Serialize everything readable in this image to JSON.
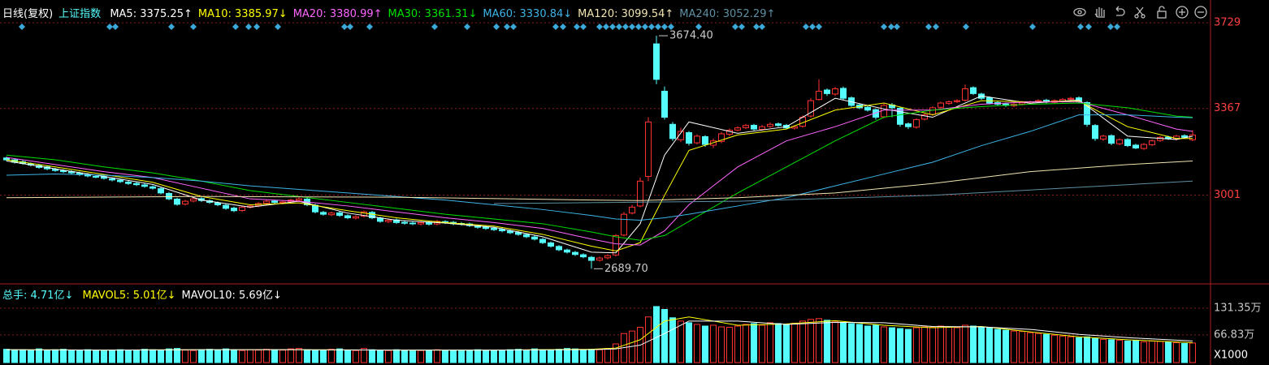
{
  "chart_data": [
    {
      "type": "candlestick",
      "period": "日线(复权)",
      "title": "上证指数",
      "open": [
        3158,
        3150,
        3142,
        3133,
        3126,
        3120,
        3110,
        3104,
        3100,
        3094,
        3088,
        3080,
        3079,
        3070,
        3064,
        3056,
        3050,
        3044,
        3036,
        3028,
        3008,
        2984,
        2963,
        2976,
        2986,
        2977,
        2968,
        2958,
        2946,
        2936,
        2950,
        2956,
        2966,
        2976,
        2968,
        2973,
        2979,
        2984,
        2958,
        2928,
        2918,
        2926,
        2914,
        2904,
        2912,
        2928,
        2904,
        2889,
        2896,
        2886,
        2883,
        2879,
        2886,
        2879,
        2889,
        2886,
        2881,
        2879,
        2871,
        2866,
        2861,
        2856,
        2849,
        2843,
        2834,
        2824,
        2814,
        2799,
        2784,
        2769,
        2759,
        2749,
        2738,
        2726,
        2736,
        2748,
        2832,
        2925,
        2955,
        3080,
        3640,
        3440,
        3300,
        3235,
        3265,
        3222,
        3248,
        3212,
        3228,
        3258,
        3276,
        3286,
        3296,
        3279,
        3291,
        3302,
        3296,
        3284,
        3292,
        3335,
        3405,
        3445,
        3428,
        3452,
        3412,
        3382,
        3372,
        3362,
        3332,
        3382,
        3368,
        3302,
        3288,
        3322,
        3342,
        3372,
        3388,
        3396,
        3402,
        3455,
        3428,
        3412,
        3392,
        3386,
        3379,
        3386,
        3390,
        3396,
        3402,
        3393,
        3398,
        3406,
        3412,
        3392,
        3295,
        3238,
        3252,
        3218,
        3236,
        3212,
        3198,
        3214,
        3232,
        3246,
        3238,
        3252,
        3235
      ],
      "high": [
        3164,
        3156,
        3148,
        3139,
        3132,
        3126,
        3116,
        3110,
        3106,
        3100,
        3094,
        3086,
        3085,
        3076,
        3070,
        3062,
        3056,
        3050,
        3042,
        3034,
        3014,
        2990,
        2981,
        2992,
        2992,
        2983,
        2974,
        2964,
        2952,
        2956,
        2961,
        2971,
        2981,
        2982,
        2978,
        2986,
        2991,
        2990,
        2964,
        2934,
        2931,
        2932,
        2920,
        2916,
        2936,
        2934,
        2910,
        2901,
        2902,
        2892,
        2889,
        2891,
        2892,
        2896,
        2895,
        2892,
        2887,
        2885,
        2877,
        2872,
        2867,
        2862,
        2855,
        2849,
        2840,
        2830,
        2820,
        2805,
        2790,
        2775,
        2765,
        2755,
        2744,
        2741,
        2751,
        2836,
        2930,
        2960,
        3075,
        3330,
        3674.4,
        3460,
        3310,
        3285,
        3272,
        3258,
        3254,
        3240,
        3268,
        3282,
        3292,
        3302,
        3302,
        3297,
        3308,
        3308,
        3302,
        3296,
        3338,
        3410,
        3490,
        3452,
        3458,
        3460,
        3418,
        3388,
        3378,
        3368,
        3388,
        3390,
        3374,
        3308,
        3326,
        3346,
        3376,
        3396,
        3401,
        3406,
        3468,
        3461,
        3434,
        3418,
        3398,
        3392,
        3391,
        3398,
        3401,
        3406,
        3408,
        3406,
        3411,
        3416,
        3418,
        3398,
        3301,
        3256,
        3258,
        3241,
        3242,
        3218,
        3221,
        3236,
        3251,
        3252,
        3256,
        3258,
        3275
      ],
      "low": [
        3144,
        3134,
        3129,
        3122,
        3112,
        3106,
        3099,
        3094,
        3089,
        3082,
        3076,
        3072,
        3066,
        3059,
        3052,
        3044,
        3039,
        3032,
        3024,
        3004,
        2979,
        2956,
        2957,
        2970,
        2972,
        2964,
        2954,
        2939,
        2929,
        2930,
        2944,
        2950,
        2960,
        2964,
        2962,
        2967,
        2973,
        2954,
        2924,
        2914,
        2912,
        2909,
        2899,
        2898,
        2906,
        2899,
        2884,
        2883,
        2879,
        2876,
        2874,
        2873,
        2872,
        2873,
        2879,
        2874,
        2872,
        2866,
        2859,
        2854,
        2849,
        2844,
        2836,
        2829,
        2819,
        2809,
        2794,
        2779,
        2764,
        2754,
        2744,
        2734,
        2689.7,
        2720,
        2730,
        2742,
        2826,
        2919,
        2949,
        3060,
        3470,
        3320,
        3230,
        3225,
        3210,
        3215,
        3205,
        3200,
        3220,
        3250,
        3270,
        3280,
        3274,
        3273,
        3285,
        3289,
        3279,
        3278,
        3286,
        3328,
        3400,
        3420,
        3420,
        3404,
        3374,
        3364,
        3354,
        3320,
        3326,
        3330,
        3290,
        3280,
        3282,
        3316,
        3336,
        3366,
        3382,
        3390,
        3396,
        3424,
        3404,
        3384,
        3379,
        3374,
        3373,
        3380,
        3384,
        3390,
        3389,
        3387,
        3392,
        3400,
        3389,
        3290,
        3230,
        3230,
        3212,
        3212,
        3204,
        3195,
        3192,
        3208,
        3226,
        3234,
        3232,
        3239,
        3229
      ],
      "close": [
        3150,
        3140,
        3135,
        3128,
        3118,
        3112,
        3105,
        3100,
        3095,
        3088,
        3082,
        3078,
        3072,
        3065,
        3058,
        3050,
        3045,
        3038,
        3030,
        3010,
        2985,
        2962,
        2975,
        2985,
        2978,
        2970,
        2960,
        2945,
        2935,
        2950,
        2955,
        2965,
        2975,
        2970,
        2972,
        2980,
        2985,
        2960,
        2930,
        2920,
        2925,
        2915,
        2905,
        2910,
        2930,
        2905,
        2890,
        2895,
        2885,
        2882,
        2880,
        2885,
        2878,
        2890,
        2885,
        2880,
        2878,
        2872,
        2865,
        2860,
        2855,
        2850,
        2842,
        2835,
        2825,
        2815,
        2800,
        2785,
        2770,
        2760,
        2750,
        2740,
        2725,
        2735,
        2745,
        2830,
        2920,
        2950,
        3060,
        3310,
        3490,
        3330,
        3240,
        3270,
        3220,
        3250,
        3215,
        3230,
        3260,
        3275,
        3285,
        3295,
        3280,
        3290,
        3300,
        3295,
        3285,
        3290,
        3330,
        3400,
        3440,
        3430,
        3450,
        3410,
        3380,
        3370,
        3360,
        3330,
        3380,
        3370,
        3300,
        3290,
        3320,
        3340,
        3370,
        3390,
        3395,
        3400,
        3450,
        3430,
        3410,
        3390,
        3385,
        3380,
        3385,
        3392,
        3395,
        3400,
        3395,
        3400,
        3405,
        3410,
        3395,
        3300,
        3240,
        3250,
        3220,
        3235,
        3210,
        3200,
        3215,
        3230,
        3245,
        3240,
        3250,
        3245,
        3255
      ],
      "up_color": "#ff3232",
      "down_color": "#54fcfc",
      "series": [
        {
          "name": "MA5: 3375.25↑",
          "color": "#ffffff",
          "x": [
            0,
            6,
            12,
            18,
            24,
            30,
            36,
            42,
            48,
            54,
            60,
            66,
            72,
            75,
            78,
            81,
            84,
            90,
            96,
            102,
            108,
            114,
            120,
            126,
            132,
            138,
            144,
            146
          ],
          "values": [
            3145,
            3112,
            3080,
            3046,
            2980,
            2950,
            2975,
            2925,
            2895,
            2883,
            2865,
            2825,
            2760,
            2757,
            2880,
            3170,
            3310,
            3262,
            3290,
            3410,
            3365,
            3330,
            3420,
            3389,
            3403,
            3250,
            3236,
            3250
          ]
        },
        {
          "name": "MA10: 3385.97↓",
          "color": "#ffff00",
          "x": [
            0,
            6,
            12,
            18,
            24,
            30,
            36,
            42,
            48,
            54,
            60,
            66,
            72,
            75,
            78,
            81,
            84,
            90,
            96,
            102,
            108,
            114,
            120,
            126,
            132,
            138,
            144,
            146
          ],
          "values": [
            3150,
            3120,
            3088,
            3055,
            2995,
            2960,
            2968,
            2935,
            2905,
            2885,
            2870,
            2835,
            2785,
            2765,
            2800,
            3000,
            3190,
            3255,
            3280,
            3360,
            3390,
            3340,
            3400,
            3395,
            3398,
            3290,
            3240,
            3240
          ]
        },
        {
          "name": "MA20: 3380.99↑",
          "color": "#ff66ff",
          "x": [
            0,
            6,
            12,
            18,
            24,
            30,
            36,
            42,
            48,
            54,
            60,
            66,
            72,
            75,
            78,
            81,
            84,
            90,
            96,
            102,
            108,
            114,
            120,
            126,
            132,
            138,
            144,
            146
          ],
          "values": [
            3160,
            3130,
            3100,
            3075,
            3030,
            2985,
            2975,
            2955,
            2930,
            2905,
            2885,
            2860,
            2815,
            2795,
            2790,
            2850,
            2960,
            3120,
            3230,
            3290,
            3360,
            3360,
            3385,
            3395,
            3395,
            3340,
            3280,
            3270
          ]
        },
        {
          "name": "MA30: 3361.31↓",
          "color": "#00e000",
          "x": [
            0,
            6,
            12,
            18,
            24,
            30,
            36,
            42,
            48,
            54,
            60,
            66,
            72,
            75,
            78,
            81,
            84,
            90,
            96,
            102,
            108,
            114,
            120,
            126,
            132,
            138,
            144,
            146
          ],
          "values": [
            3170,
            3150,
            3120,
            3095,
            3060,
            3020,
            2995,
            2970,
            2945,
            2920,
            2900,
            2880,
            2845,
            2825,
            2810,
            2830,
            2890,
            3010,
            3120,
            3230,
            3330,
            3360,
            3375,
            3385,
            3390,
            3370,
            3335,
            3330
          ]
        },
        {
          "name": "MA60: 3330.84↓",
          "color": "#3cb4e6",
          "x": [
            0,
            6,
            12,
            18,
            24,
            30,
            36,
            42,
            48,
            54,
            60,
            66,
            72,
            75,
            78,
            81,
            84,
            90,
            96,
            102,
            108,
            114,
            120,
            126,
            132,
            138,
            144,
            146
          ],
          "values": [
            3085,
            3090,
            3085,
            3075,
            3060,
            3040,
            3025,
            3010,
            2995,
            2980,
            2960,
            2940,
            2915,
            2900,
            2895,
            2905,
            2920,
            2955,
            2990,
            3040,
            3090,
            3140,
            3210,
            3270,
            3340,
            3340,
            3330,
            3328
          ]
        },
        {
          "name": "MA120: 3099.54↑",
          "color": "#f0e4b0",
          "x": [
            0,
            24,
            48,
            72,
            78,
            90,
            102,
            114,
            126,
            138,
            146
          ],
          "values": [
            2990,
            2995,
            2992,
            2980,
            2978,
            2990,
            3010,
            3050,
            3100,
            3130,
            3145
          ]
        },
        {
          "name": "MA240: 3052.29↑",
          "color": "#5f8fa3",
          "x": [
            60,
            90,
            114,
            130,
            146
          ],
          "values": [
            2965,
            2975,
            3000,
            3030,
            3060
          ]
        }
      ],
      "ylim": [
        2660,
        3750
      ],
      "yticks": [
        3729,
        3367,
        3001
      ],
      "grid": true,
      "annotations": [
        {
          "x": 80,
          "y": 3674.4,
          "label": "3674.40"
        },
        {
          "x": 72,
          "y": 2689.7,
          "label": "2689.70"
        }
      ]
    },
    {
      "type": "bar",
      "title": "总手: 4.71亿↓",
      "values": [
        32,
        30,
        31,
        29,
        33,
        30,
        31,
        32,
        30,
        29,
        31,
        30,
        28,
        30,
        31,
        29,
        30,
        32,
        31,
        30,
        33,
        34,
        30,
        29,
        31,
        32,
        30,
        33,
        30,
        29,
        31,
        30,
        32,
        31,
        30,
        33,
        34,
        31,
        30,
        29,
        32,
        33,
        30,
        29,
        34,
        31,
        30,
        29,
        31,
        30,
        28,
        29,
        30,
        31,
        29,
        30,
        28,
        29,
        31,
        30,
        30,
        29,
        31,
        32,
        30,
        33,
        31,
        30,
        32,
        34,
        33,
        30,
        32,
        31,
        34,
        45,
        70,
        76,
        85,
        110,
        135,
        128,
        108,
        100,
        96,
        92,
        88,
        90,
        86,
        85,
        88,
        92,
        94,
        90,
        96,
        94,
        92,
        95,
        100,
        104,
        106,
        102,
        98,
        96,
        94,
        92,
        88,
        90,
        86,
        84,
        82,
        80,
        84,
        86,
        85,
        88,
        86,
        84,
        90,
        88,
        86,
        84,
        80,
        78,
        76,
        75,
        72,
        70,
        68,
        66,
        64,
        62,
        60,
        62,
        58,
        56,
        55,
        54,
        52,
        53,
        50,
        52,
        51,
        49,
        48,
        46,
        47.1
      ],
      "series": [
        {
          "name": "MAVOL5: 5.01亿↓",
          "color": "#ffff00",
          "x": [
            0,
            12,
            24,
            36,
            48,
            60,
            72,
            75,
            78,
            81,
            84,
            90,
            96,
            102,
            108,
            114,
            120,
            126,
            132,
            138,
            146
          ],
          "values": [
            31,
            30,
            31,
            31,
            30,
            30,
            32,
            35,
            55,
            100,
            110,
            90,
            93,
            101,
            90,
            84,
            87,
            74,
            62,
            55,
            48
          ]
        },
        {
          "name": "MAVOL10: 5.69亿↓",
          "color": "#ffffff",
          "x": [
            0,
            12,
            24,
            36,
            48,
            60,
            72,
            75,
            78,
            81,
            84,
            90,
            96,
            102,
            108,
            114,
            120,
            126,
            132,
            138,
            146
          ],
          "values": [
            31,
            30,
            31,
            31,
            30,
            30,
            31,
            33,
            42,
            70,
            100,
            100,
            92,
            97,
            96,
            87,
            86,
            80,
            68,
            60,
            52
          ]
        }
      ],
      "ylim": [
        0,
        174
      ],
      "yticks": [
        {
          "value": 131.35,
          "label": "131.35万"
        },
        {
          "value": 66.83,
          "label": "66.83万"
        }
      ],
      "grid": true,
      "unit": "X1000"
    }
  ]
}
